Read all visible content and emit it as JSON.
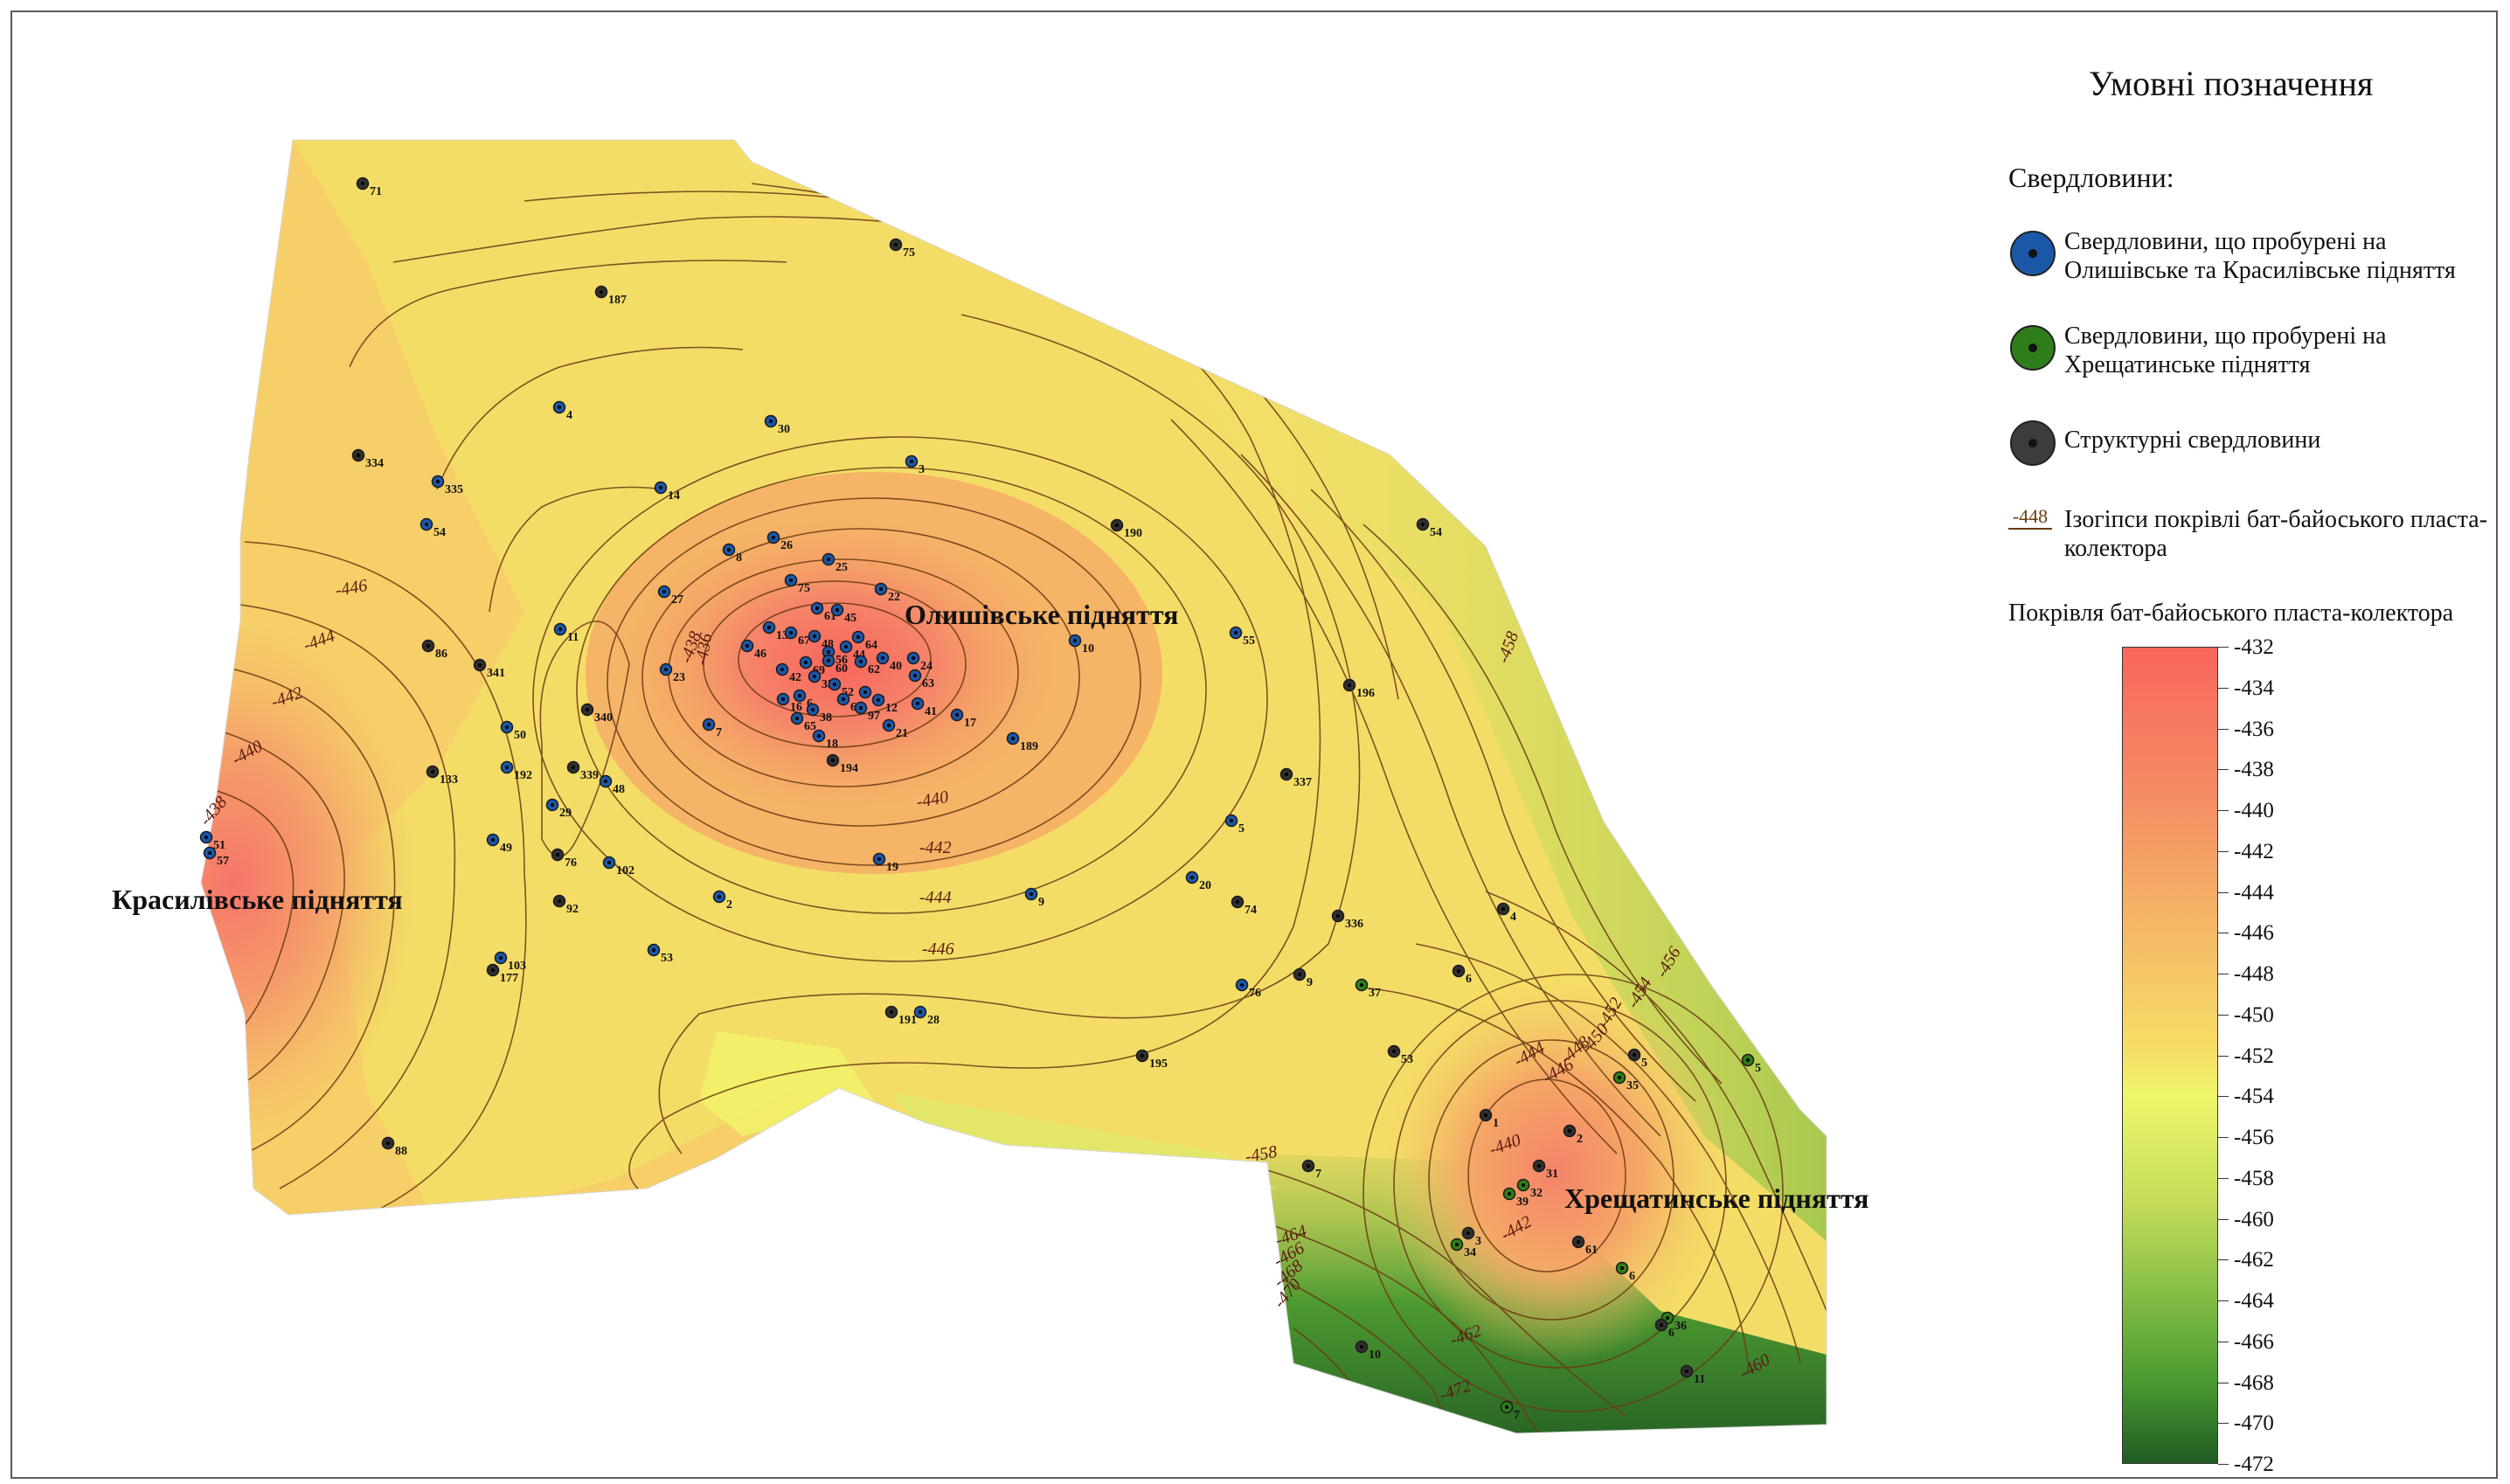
{
  "legend": {
    "title": "Умовні позначення",
    "wells_header": "Свердловини:",
    "items": [
      {
        "label": "Свердловини, що пробурені на Олишівське та Красилівське підняття",
        "color": "#1b57a7",
        "icon": "blue-well-icon"
      },
      {
        "label": "Свердловини, що пробурені на Хрещатинське підняття",
        "color": "#2f7d1a",
        "icon": "green-well-icon"
      },
      {
        "label": "Структурні свердловини",
        "color": "#3c3c3c",
        "icon": "structural-well-icon"
      }
    ],
    "isoline_sample": "-448",
    "isoline_label": "Ізогіпси покрівлі бат-байоського пласта-колектора",
    "colorbar_title": "Покрівля бат-байоського пласта-колектора",
    "colorbar_ticks": [
      "-432",
      "-434",
      "-436",
      "-438",
      "-440",
      "-442",
      "-444",
      "-446",
      "-448",
      "-450",
      "-452",
      "-454",
      "-456",
      "-458",
      "-460",
      "-462",
      "-464",
      "-466",
      "-468",
      "-470",
      "-472"
    ]
  },
  "structures": [
    {
      "name": "Олишівське підняття"
    },
    {
      "name": "Красилівське підняття"
    },
    {
      "name": "Хрещатинське підняття"
    }
  ],
  "isoline_labels": [
    "-446",
    "-444",
    "-442",
    "-440",
    "-438",
    "-438",
    "-436",
    "-440",
    "-442",
    "-444",
    "-446",
    "-458",
    "-456",
    "-454",
    "-452",
    "-450",
    "-448",
    "-446",
    "-444",
    "-440",
    "-442",
    "-458",
    "-464",
    "-466",
    "-468",
    "-470",
    "-462",
    "-472",
    "-460"
  ],
  "wells": [
    {
      "id": "71",
      "type": "structural"
    },
    {
      "id": "75",
      "type": "structural"
    },
    {
      "id": "187",
      "type": "structural"
    },
    {
      "id": "4",
      "type": "blue"
    },
    {
      "id": "30",
      "type": "blue"
    },
    {
      "id": "3",
      "type": "blue"
    },
    {
      "id": "334",
      "type": "structural"
    },
    {
      "id": "335",
      "type": "blue"
    },
    {
      "id": "54",
      "type": "blue"
    },
    {
      "id": "14",
      "type": "blue"
    },
    {
      "id": "190",
      "type": "structural"
    },
    {
      "id": "54",
      "type": "structural"
    },
    {
      "id": "8",
      "type": "blue"
    },
    {
      "id": "26",
      "type": "blue"
    },
    {
      "id": "25",
      "type": "blue"
    },
    {
      "id": "22",
      "type": "blue"
    },
    {
      "id": "27",
      "type": "blue"
    },
    {
      "id": "75",
      "type": "blue"
    },
    {
      "id": "61",
      "type": "blue"
    },
    {
      "id": "45",
      "type": "blue"
    },
    {
      "id": "13",
      "type": "blue"
    },
    {
      "id": "67",
      "type": "blue"
    },
    {
      "id": "48",
      "type": "blue"
    },
    {
      "id": "64",
      "type": "blue"
    },
    {
      "id": "46",
      "type": "blue"
    },
    {
      "id": "56",
      "type": "blue"
    },
    {
      "id": "44",
      "type": "blue"
    },
    {
      "id": "60",
      "type": "blue"
    },
    {
      "id": "62",
      "type": "blue"
    },
    {
      "id": "40",
      "type": "blue"
    },
    {
      "id": "24",
      "type": "blue"
    },
    {
      "id": "69",
      "type": "blue"
    },
    {
      "id": "42",
      "type": "blue"
    },
    {
      "id": "35",
      "type": "blue"
    },
    {
      "id": "52",
      "type": "blue"
    },
    {
      "id": "63",
      "type": "blue"
    },
    {
      "id": "47",
      "type": "blue"
    },
    {
      "id": "16",
      "type": "blue"
    },
    {
      "id": "6",
      "type": "blue"
    },
    {
      "id": "66",
      "type": "blue"
    },
    {
      "id": "12",
      "type": "blue"
    },
    {
      "id": "97",
      "type": "blue"
    },
    {
      "id": "38",
      "type": "blue"
    },
    {
      "id": "41",
      "type": "blue"
    },
    {
      "id": "65",
      "type": "blue"
    },
    {
      "id": "17",
      "type": "blue"
    },
    {
      "id": "21",
      "type": "blue"
    },
    {
      "id": "18",
      "type": "blue"
    },
    {
      "id": "194",
      "type": "structural"
    },
    {
      "id": "23",
      "type": "blue"
    },
    {
      "id": "7",
      "type": "blue"
    },
    {
      "id": "11",
      "type": "blue"
    },
    {
      "id": "10",
      "type": "blue"
    },
    {
      "id": "55",
      "type": "blue"
    },
    {
      "id": "196",
      "type": "structural"
    },
    {
      "id": "189",
      "type": "blue"
    },
    {
      "id": "86",
      "type": "structural"
    },
    {
      "id": "341",
      "type": "structural"
    },
    {
      "id": "340",
      "type": "structural"
    },
    {
      "id": "50",
      "type": "blue"
    },
    {
      "id": "133",
      "type": "structural"
    },
    {
      "id": "192",
      "type": "blue"
    },
    {
      "id": "339",
      "type": "structural"
    },
    {
      "id": "48",
      "type": "blue"
    },
    {
      "id": "29",
      "type": "blue"
    },
    {
      "id": "49",
      "type": "blue"
    },
    {
      "id": "76",
      "type": "structural"
    },
    {
      "id": "51",
      "type": "blue"
    },
    {
      "id": "57",
      "type": "blue"
    },
    {
      "id": "92",
      "type": "structural"
    },
    {
      "id": "102",
      "type": "blue"
    },
    {
      "id": "2",
      "type": "blue"
    },
    {
      "id": "19",
      "type": "blue"
    },
    {
      "id": "9",
      "type": "blue"
    },
    {
      "id": "20",
      "type": "blue"
    },
    {
      "id": "74",
      "type": "structural"
    },
    {
      "id": "337",
      "type": "structural"
    },
    {
      "id": "5",
      "type": "blue"
    },
    {
      "id": "336",
      "type": "structural"
    },
    {
      "id": "103",
      "type": "blue"
    },
    {
      "id": "177",
      "type": "structural"
    },
    {
      "id": "53",
      "type": "blue"
    },
    {
      "id": "191",
      "type": "structural"
    },
    {
      "id": "28",
      "type": "blue"
    },
    {
      "id": "76",
      "type": "blue"
    },
    {
      "id": "9",
      "type": "structural"
    },
    {
      "id": "37",
      "type": "green"
    },
    {
      "id": "6",
      "type": "structural"
    },
    {
      "id": "4",
      "type": "structural"
    },
    {
      "id": "195",
      "type": "structural"
    },
    {
      "id": "53",
      "type": "structural"
    },
    {
      "id": "5",
      "type": "structural"
    },
    {
      "id": "35",
      "type": "green"
    },
    {
      "id": "5",
      "type": "green"
    },
    {
      "id": "88",
      "type": "structural"
    },
    {
      "id": "1",
      "type": "structural"
    },
    {
      "id": "2",
      "type": "structural"
    },
    {
      "id": "7",
      "type": "structural"
    },
    {
      "id": "31",
      "type": "structural"
    },
    {
      "id": "32",
      "type": "green"
    },
    {
      "id": "39",
      "type": "green"
    },
    {
      "id": "3",
      "type": "structural"
    },
    {
      "id": "34",
      "type": "green"
    },
    {
      "id": "61",
      "type": "structural"
    },
    {
      "id": "6",
      "type": "green"
    },
    {
      "id": "36",
      "type": "green"
    },
    {
      "id": "6",
      "type": "structural"
    },
    {
      "id": "11",
      "type": "structural"
    },
    {
      "id": "10",
      "type": "structural"
    },
    {
      "id": "7",
      "type": "green"
    }
  ]
}
